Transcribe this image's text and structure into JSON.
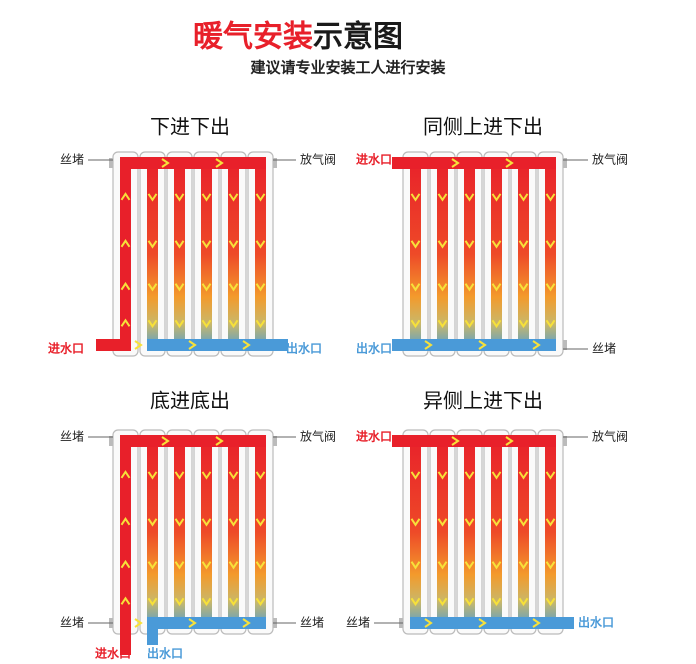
{
  "header": {
    "title_red": "暖气安装",
    "title_black": "示意图",
    "subtitle": "建议请专业安装工人进行安装"
  },
  "panels": [
    {
      "title": "下进下出",
      "labels": [
        "丝堵",
        "放气阀",
        "进水口",
        "出水口"
      ]
    },
    {
      "title": "同侧上进下出",
      "labels": [
        "进水口",
        "放气阀",
        "出水口",
        "丝堵"
      ]
    },
    {
      "title": "底进底出",
      "labels": [
        "丝堵",
        "放气阀",
        "丝堵",
        "丝堵",
        "进水口",
        "出水口"
      ]
    },
    {
      "title": "异侧上进下出",
      "labels": [
        "进水口",
        "放气阀",
        "丝堵",
        "出水口"
      ]
    }
  ]
}
